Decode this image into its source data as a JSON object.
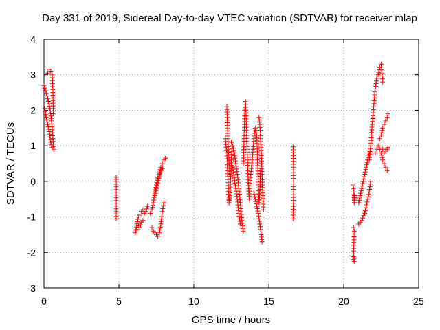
{
  "chart_data": {
    "type": "scatter",
    "title": "Day 331 of 2019, Sidereal Day-to-day VTEC variation (SDTVAR) for receiver mlap",
    "xlabel": "GPS time / hours",
    "ylabel": "SDTVAR / TECUs",
    "xlim": [
      0,
      25
    ],
    "ylim": [
      -3,
      4
    ],
    "xticks": [
      0,
      5,
      10,
      15,
      20,
      25
    ],
    "yticks": [
      -3,
      -2,
      -1,
      0,
      1,
      2,
      3,
      4
    ],
    "xtick_labels": [
      "0",
      "5",
      "10",
      "15",
      "20",
      "25"
    ],
    "ytick_labels": [
      "-3",
      "-2",
      "-1",
      "0",
      "1",
      "2",
      "3",
      "4"
    ],
    "grid": true,
    "marker": "+",
    "color": "#ff0000",
    "series": [
      {
        "name": "SDTVAR",
        "segments": [
          [
            [
              0.0,
              2.7
            ],
            [
              0.1,
              2.55
            ],
            [
              0.2,
              2.4
            ],
            [
              0.3,
              2.25
            ],
            [
              0.4,
              2.05
            ],
            [
              0.5,
              1.7
            ],
            [
              0.6,
              1.2
            ],
            [
              0.65,
              0.9
            ]
          ],
          [
            [
              0.05,
              2.05
            ],
            [
              0.15,
              1.8
            ],
            [
              0.25,
              1.6
            ],
            [
              0.35,
              1.4
            ],
            [
              0.45,
              1.1
            ],
            [
              0.55,
              0.95
            ]
          ],
          [
            [
              0.25,
              3.05
            ],
            [
              0.35,
              3.15
            ],
            [
              0.45,
              3.1
            ],
            [
              0.55,
              3.0
            ],
            [
              0.6,
              2.5
            ],
            [
              0.62,
              1.9
            ]
          ],
          [
            [
              4.82,
              0.12
            ],
            [
              4.82,
              0.0
            ],
            [
              4.82,
              -0.85
            ],
            [
              4.82,
              -1.05
            ]
          ],
          [
            [
              6.1,
              -1.45
            ],
            [
              6.2,
              -1.2
            ],
            [
              6.3,
              -1.0
            ],
            [
              6.4,
              -0.95
            ],
            [
              6.5,
              -0.85
            ],
            [
              6.6,
              -0.8
            ],
            [
              6.7,
              -0.9
            ],
            [
              6.8,
              -0.85
            ],
            [
              6.9,
              -0.7
            ]
          ],
          [
            [
              6.2,
              -1.35
            ],
            [
              6.3,
              -1.25
            ],
            [
              6.4,
              -1.3
            ],
            [
              6.5,
              -1.15
            ],
            [
              6.6,
              -1.1
            ]
          ],
          [
            [
              7.1,
              -0.9
            ],
            [
              7.2,
              -0.8
            ],
            [
              7.3,
              -0.6
            ],
            [
              7.4,
              -0.3
            ],
            [
              7.5,
              -0.1
            ],
            [
              7.6,
              0.1
            ],
            [
              7.7,
              0.2
            ],
            [
              7.8,
              0.4
            ],
            [
              7.9,
              0.5
            ],
            [
              8.0,
              0.6
            ],
            [
              8.1,
              0.65
            ]
          ],
          [
            [
              7.2,
              -1.3
            ],
            [
              7.3,
              -1.4
            ],
            [
              7.4,
              -1.45
            ],
            [
              7.5,
              -1.5
            ],
            [
              7.6,
              -1.55
            ],
            [
              7.7,
              -1.45
            ],
            [
              7.8,
              -1.2
            ],
            [
              7.9,
              -0.85
            ],
            [
              8.0,
              -0.6
            ]
          ],
          [
            [
              7.4,
              -0.4
            ],
            [
              7.5,
              -0.2
            ],
            [
              7.6,
              -0.05
            ],
            [
              7.7,
              0.15
            ],
            [
              7.8,
              0.3
            ],
            [
              7.9,
              0.35
            ]
          ],
          [
            [
              12.1,
              1.2
            ],
            [
              12.2,
              0.8
            ],
            [
              12.25,
              0.3
            ],
            [
              12.3,
              -0.2
            ],
            [
              12.35,
              -0.6
            ],
            [
              12.4,
              -0.4
            ],
            [
              12.45,
              0.0
            ],
            [
              12.5,
              0.6
            ],
            [
              12.55,
              1.0
            ]
          ],
          [
            [
              12.2,
              2.1
            ],
            [
              12.25,
              1.5
            ],
            [
              12.3,
              0.9
            ],
            [
              12.35,
              0.5
            ],
            [
              12.4,
              0.2
            ]
          ],
          [
            [
              12.5,
              1.1
            ],
            [
              12.6,
              1.0
            ],
            [
              12.7,
              0.8
            ],
            [
              12.8,
              0.5
            ],
            [
              12.9,
              0.2
            ],
            [
              13.0,
              -0.2
            ],
            [
              13.1,
              -0.6
            ],
            [
              13.2,
              -1.1
            ],
            [
              13.3,
              -1.4
            ]
          ],
          [
            [
              12.6,
              0.4
            ],
            [
              12.7,
              0.1
            ],
            [
              12.8,
              -0.2
            ],
            [
              12.9,
              -0.5
            ],
            [
              13.0,
              -0.9
            ],
            [
              13.1,
              -1.2
            ]
          ],
          [
            [
              13.3,
              0.5
            ],
            [
              13.35,
              1.2
            ],
            [
              13.4,
              2.0
            ],
            [
              13.45,
              2.25
            ],
            [
              13.5,
              1.6
            ],
            [
              13.55,
              0.9
            ],
            [
              13.6,
              0.3
            ],
            [
              13.65,
              -0.2
            ],
            [
              13.7,
              -0.5
            ],
            [
              13.75,
              0.1
            ]
          ],
          [
            [
              13.8,
              0.2
            ],
            [
              13.9,
              0.6
            ],
            [
              14.0,
              1.2
            ],
            [
              14.1,
              1.5
            ],
            [
              14.2,
              1.3
            ],
            [
              14.25,
              0.6
            ],
            [
              14.3,
              -0.1
            ],
            [
              14.35,
              -0.6
            ],
            [
              14.4,
              -0.3
            ],
            [
              14.45,
              0.3
            ]
          ],
          [
            [
              14.0,
              -0.3
            ],
            [
              14.1,
              -0.5
            ],
            [
              14.2,
              -0.7
            ],
            [
              14.3,
              -0.9
            ],
            [
              14.4,
              -1.2
            ],
            [
              14.5,
              -1.5
            ],
            [
              14.55,
              -1.7
            ]
          ],
          [
            [
              14.35,
              1.8
            ],
            [
              14.4,
              1.6
            ],
            [
              14.45,
              1.2
            ],
            [
              14.5,
              0.8
            ],
            [
              14.55,
              0.2
            ],
            [
              14.6,
              -0.4
            ],
            [
              14.65,
              -0.8
            ]
          ],
          [
            [
              16.62,
              0.97
            ],
            [
              16.65,
              0.4
            ],
            [
              16.65,
              -0.15
            ],
            [
              16.65,
              -0.45
            ],
            [
              16.62,
              -0.95
            ],
            [
              16.62,
              -1.05
            ]
          ],
          [
            [
              20.62,
              -0.1
            ],
            [
              20.65,
              -0.2
            ],
            [
              20.68,
              -0.3
            ],
            [
              20.7,
              -0.6
            ],
            [
              20.72,
              -0.4
            ]
          ],
          [
            [
              20.65,
              -1.3
            ],
            [
              20.7,
              -1.4
            ],
            [
              20.65,
              -2.2
            ],
            [
              20.7,
              -2.25
            ],
            [
              20.72,
              -2.15
            ]
          ],
          [
            [
              21.0,
              -0.6
            ],
            [
              21.1,
              -0.4
            ],
            [
              21.2,
              -0.2
            ],
            [
              21.3,
              0.0
            ],
            [
              21.4,
              0.2
            ],
            [
              21.5,
              0.4
            ],
            [
              21.6,
              0.6
            ],
            [
              21.7,
              0.8
            ]
          ],
          [
            [
              21.0,
              -1.2
            ],
            [
              21.2,
              -1.1
            ],
            [
              21.4,
              -0.9
            ],
            [
              21.6,
              -0.5
            ],
            [
              21.7,
              -0.3
            ],
            [
              21.8,
              0.0
            ]
          ],
          [
            [
              21.7,
              0.6
            ],
            [
              21.8,
              1.0
            ],
            [
              21.9,
              1.6
            ],
            [
              22.0,
              2.1
            ],
            [
              22.1,
              2.6
            ],
            [
              22.2,
              2.9
            ],
            [
              22.3,
              3.0
            ],
            [
              22.4,
              3.2
            ],
            [
              22.5,
              3.3
            ],
            [
              22.6,
              2.8
            ]
          ],
          [
            [
              22.1,
              0.8
            ],
            [
              22.2,
              0.9
            ],
            [
              22.3,
              1.0
            ],
            [
              22.4,
              0.9
            ],
            [
              22.5,
              0.8
            ],
            [
              22.6,
              0.6
            ],
            [
              22.7,
              0.5
            ],
            [
              22.8,
              0.4
            ],
            [
              22.9,
              0.3
            ]
          ],
          [
            [
              22.4,
              1.2
            ],
            [
              22.5,
              1.3
            ],
            [
              22.6,
              1.5
            ],
            [
              22.7,
              1.6
            ],
            [
              22.8,
              1.7
            ],
            [
              22.9,
              1.8
            ],
            [
              22.95,
              1.9
            ]
          ],
          [
            [
              22.6,
              0.9
            ],
            [
              22.7,
              0.8
            ],
            [
              22.8,
              0.85
            ],
            [
              22.9,
              0.9
            ],
            [
              22.95,
              0.95
            ]
          ]
        ]
      }
    ]
  }
}
